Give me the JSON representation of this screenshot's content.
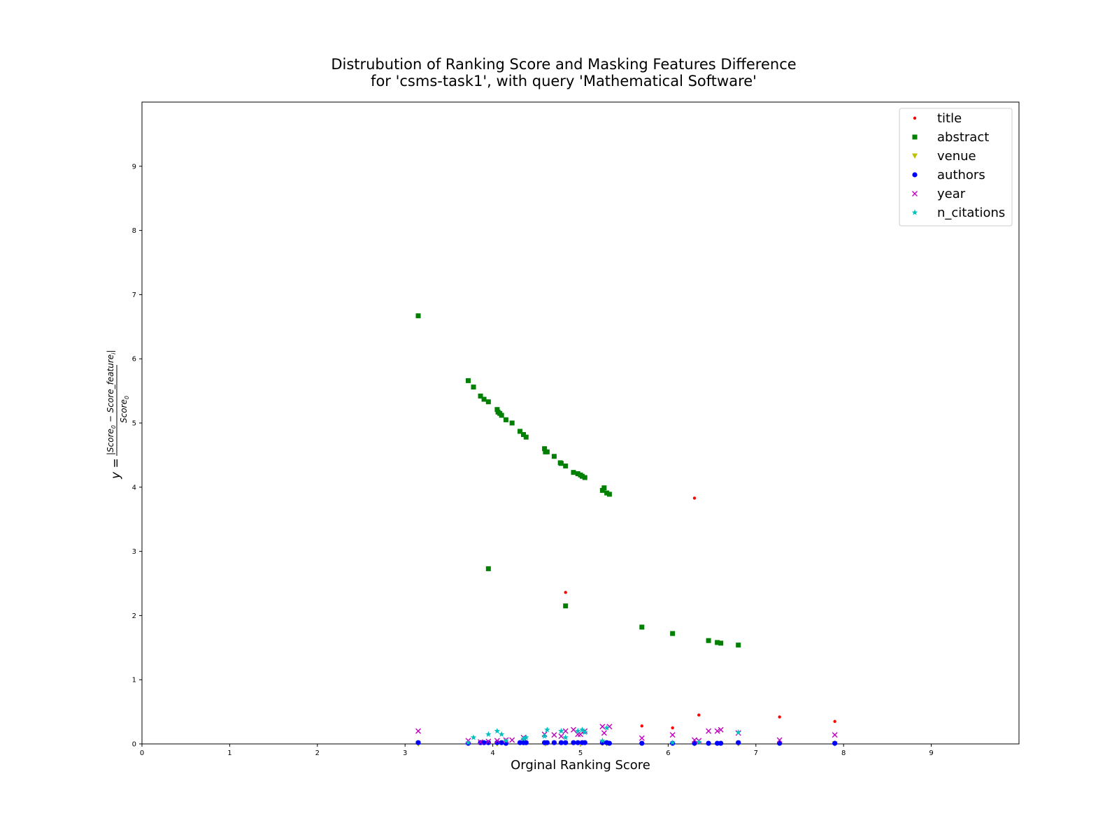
{
  "chart_data": {
    "type": "scatter",
    "title_lines": [
      "Distrubution of Ranking Score and Masking Features Difference",
      "for 'csms-task1', with query 'Mathematical Software'"
    ],
    "xlabel": "Orginal Ranking Score",
    "ylabel": "y = |Score0 − Score_featurei| / Score0",
    "ylabel_parts": {
      "lhs": "y =",
      "numerator": "|Score",
      "num_sub0": "0",
      "num_mid": " − Score_feature",
      "num_subi": "i",
      "num_end": "|",
      "denominator": "Score",
      "den_sub0": "0"
    },
    "xlim": [
      0,
      10
    ],
    "ylim": [
      0,
      10
    ],
    "xticks": [
      0,
      1,
      2,
      3,
      4,
      5,
      6,
      7,
      8,
      9
    ],
    "yticks": [
      0,
      1,
      2,
      3,
      4,
      5,
      6,
      7,
      8,
      9
    ],
    "legend_location": "upper right",
    "series": [
      {
        "name": "title",
        "marker": "point",
        "color": "#ff0000",
        "points": [
          [
            6.3,
            3.83
          ],
          [
            4.83,
            2.36
          ],
          [
            5.7,
            0.28
          ],
          [
            6.05,
            0.25
          ],
          [
            6.35,
            0.45
          ],
          [
            7.27,
            0.42
          ],
          [
            7.9,
            0.35
          ],
          [
            5.25,
            0.0
          ],
          [
            6.8,
            0.0
          ]
        ]
      },
      {
        "name": "abstract",
        "marker": "square",
        "color": "#008000",
        "points": [
          [
            3.15,
            6.67
          ],
          [
            3.72,
            5.66
          ],
          [
            3.78,
            5.56
          ],
          [
            3.86,
            5.42
          ],
          [
            3.9,
            5.37
          ],
          [
            3.95,
            5.33
          ],
          [
            3.95,
            2.73
          ],
          [
            4.05,
            5.21
          ],
          [
            4.06,
            5.17
          ],
          [
            4.08,
            5.15
          ],
          [
            4.1,
            5.12
          ],
          [
            4.15,
            5.05
          ],
          [
            4.22,
            5.0
          ],
          [
            4.31,
            4.87
          ],
          [
            4.35,
            4.82
          ],
          [
            4.38,
            4.78
          ],
          [
            4.59,
            4.6
          ],
          [
            4.6,
            4.55
          ],
          [
            4.62,
            4.55
          ],
          [
            4.7,
            4.48
          ],
          [
            4.77,
            4.38
          ],
          [
            4.78,
            4.37
          ],
          [
            4.83,
            4.33
          ],
          [
            4.83,
            2.15
          ],
          [
            4.92,
            4.23
          ],
          [
            4.97,
            4.21
          ],
          [
            5.0,
            4.19
          ],
          [
            5.02,
            4.17
          ],
          [
            5.05,
            4.15
          ],
          [
            5.25,
            3.95
          ],
          [
            5.27,
            3.99
          ],
          [
            5.3,
            3.91
          ],
          [
            5.33,
            3.89
          ],
          [
            5.7,
            1.82
          ],
          [
            6.05,
            1.72
          ],
          [
            6.46,
            1.61
          ],
          [
            6.56,
            1.58
          ],
          [
            6.6,
            1.57
          ],
          [
            6.8,
            1.54
          ]
        ]
      },
      {
        "name": "venue",
        "marker": "triangle_down",
        "color": "#bfbf00",
        "points": [
          [
            3.15,
            0.0
          ],
          [
            4.05,
            0.0
          ],
          [
            4.6,
            0.0
          ],
          [
            5.0,
            0.0
          ],
          [
            5.3,
            0.0
          ],
          [
            6.3,
            0.0
          ],
          [
            6.8,
            0.0
          ],
          [
            7.9,
            0.0
          ]
        ]
      },
      {
        "name": "authors",
        "marker": "circle",
        "color": "#0000ff",
        "points": [
          [
            3.15,
            0.02
          ],
          [
            3.72,
            0.01
          ],
          [
            3.86,
            0.02
          ],
          [
            3.9,
            0.02
          ],
          [
            3.95,
            0.02
          ],
          [
            4.05,
            0.02
          ],
          [
            4.1,
            0.02
          ],
          [
            4.15,
            0.01
          ],
          [
            4.31,
            0.02
          ],
          [
            4.35,
            0.02
          ],
          [
            4.38,
            0.02
          ],
          [
            4.59,
            0.02
          ],
          [
            4.62,
            0.02
          ],
          [
            4.7,
            0.02
          ],
          [
            4.78,
            0.02
          ],
          [
            4.83,
            0.02
          ],
          [
            4.92,
            0.02
          ],
          [
            4.97,
            0.02
          ],
          [
            5.02,
            0.02
          ],
          [
            5.05,
            0.02
          ],
          [
            5.25,
            0.02
          ],
          [
            5.3,
            0.02
          ],
          [
            5.33,
            0.01
          ],
          [
            5.7,
            0.01
          ],
          [
            6.05,
            0.01
          ],
          [
            6.3,
            0.01
          ],
          [
            6.46,
            0.01
          ],
          [
            6.56,
            0.01
          ],
          [
            6.6,
            0.01
          ],
          [
            6.8,
            0.02
          ],
          [
            7.27,
            0.01
          ],
          [
            7.9,
            0.01
          ]
        ]
      },
      {
        "name": "year",
        "marker": "x",
        "color": "#bf00bf",
        "points": [
          [
            3.15,
            0.2
          ],
          [
            3.72,
            0.05
          ],
          [
            3.86,
            0.03
          ],
          [
            3.95,
            0.04
          ],
          [
            4.05,
            0.05
          ],
          [
            4.15,
            0.06
          ],
          [
            4.22,
            0.06
          ],
          [
            4.35,
            0.1
          ],
          [
            4.59,
            0.15
          ],
          [
            4.7,
            0.14
          ],
          [
            4.78,
            0.12
          ],
          [
            4.83,
            0.2
          ],
          [
            4.92,
            0.22
          ],
          [
            4.97,
            0.15
          ],
          [
            5.0,
            0.15
          ],
          [
            5.05,
            0.2
          ],
          [
            5.25,
            0.27
          ],
          [
            5.27,
            0.17
          ],
          [
            5.33,
            0.27
          ],
          [
            5.7,
            0.09
          ],
          [
            6.05,
            0.14
          ],
          [
            6.3,
            0.06
          ],
          [
            6.35,
            0.05
          ],
          [
            6.46,
            0.2
          ],
          [
            6.56,
            0.2
          ],
          [
            6.6,
            0.22
          ],
          [
            6.8,
            0.17
          ],
          [
            7.27,
            0.06
          ],
          [
            7.9,
            0.14
          ]
        ]
      },
      {
        "name": "n_citations",
        "marker": "star",
        "color": "#00bfbf",
        "points": [
          [
            3.72,
            0.02
          ],
          [
            3.78,
            0.1
          ],
          [
            3.95,
            0.15
          ],
          [
            4.05,
            0.2
          ],
          [
            4.1,
            0.15
          ],
          [
            4.15,
            0.05
          ],
          [
            4.35,
            0.08
          ],
          [
            4.38,
            0.1
          ],
          [
            4.59,
            0.12
          ],
          [
            4.62,
            0.22
          ],
          [
            4.78,
            0.2
          ],
          [
            4.83,
            0.1
          ],
          [
            4.97,
            0.2
          ],
          [
            5.02,
            0.22
          ],
          [
            5.05,
            0.18
          ],
          [
            5.25,
            0.05
          ],
          [
            5.3,
            0.25
          ],
          [
            6.05,
            0.02
          ],
          [
            6.35,
            0.03
          ],
          [
            6.8,
            0.18
          ]
        ]
      }
    ]
  }
}
